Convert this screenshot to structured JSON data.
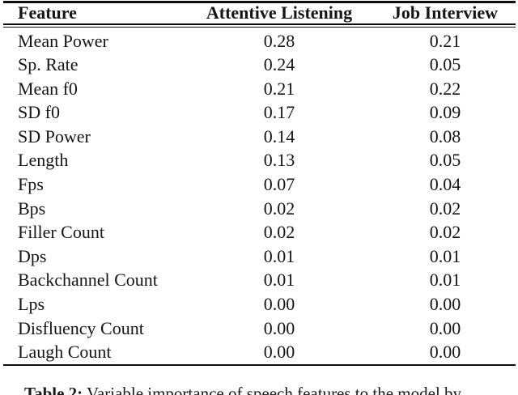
{
  "table": {
    "columns": [
      "Feature",
      "Attentive Listening",
      "Job Interview"
    ],
    "rows": [
      {
        "feature": "Mean Power",
        "attentive_listening": "0.28",
        "job_interview": "0.21"
      },
      {
        "feature": "Sp. Rate",
        "attentive_listening": "0.24",
        "job_interview": "0.05"
      },
      {
        "feature": "Mean f0",
        "attentive_listening": "0.21",
        "job_interview": "0.22"
      },
      {
        "feature": "SD f0",
        "attentive_listening": "0.17",
        "job_interview": "0.09"
      },
      {
        "feature": "SD Power",
        "attentive_listening": "0.14",
        "job_interview": "0.08"
      },
      {
        "feature": "Length",
        "attentive_listening": "0.13",
        "job_interview": "0.05"
      },
      {
        "feature": "Fps",
        "attentive_listening": "0.07",
        "job_interview": "0.04"
      },
      {
        "feature": "Bps",
        "attentive_listening": "0.02",
        "job_interview": "0.02"
      },
      {
        "feature": "Filler Count",
        "attentive_listening": "0.02",
        "job_interview": "0.02"
      },
      {
        "feature": "Dps",
        "attentive_listening": "0.01",
        "job_interview": "0.01"
      },
      {
        "feature": "Backchannel Count",
        "attentive_listening": "0.01",
        "job_interview": "0.01"
      },
      {
        "feature": "Lps",
        "attentive_listening": "0.00",
        "job_interview": "0.00"
      },
      {
        "feature": "Disfluency Count",
        "attentive_listening": "0.00",
        "job_interview": "0.00"
      },
      {
        "feature": "Laugh Count",
        "attentive_listening": "0.00",
        "job_interview": "0.00"
      }
    ]
  },
  "caption": {
    "label": "Table 2:",
    "text": "Variable importance of speech features to the model by"
  },
  "colors": {
    "background": "#ffffff",
    "text": "#151515",
    "rule": "#0d0d0d"
  }
}
